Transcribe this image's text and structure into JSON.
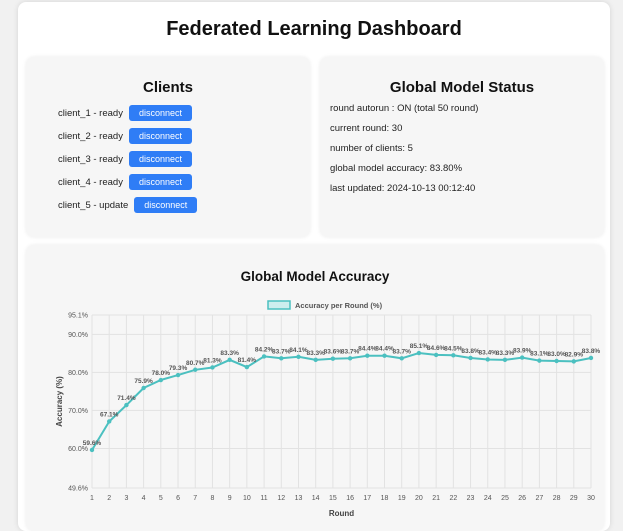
{
  "page": {
    "title": "Federated Learning Dashboard"
  },
  "clients": {
    "title": "Clients",
    "items": [
      {
        "label": "client_1 - ready",
        "button": "disconnect"
      },
      {
        "label": "client_2 - ready",
        "button": "disconnect"
      },
      {
        "label": "client_3 - ready",
        "button": "disconnect"
      },
      {
        "label": "client_4 - ready",
        "button": "disconnect"
      },
      {
        "label": "client_5 - update",
        "button": "disconnect"
      }
    ]
  },
  "status": {
    "title": "Global Model Status",
    "lines": [
      "round autorun : ON (total 50 round)",
      "current round: 30",
      "number of clients: 5",
      "global model accuracy: 83.80%",
      "last updated: 2024-10-13 00:12:40"
    ]
  },
  "chart": {
    "title": "Global Model Accuracy",
    "accent": "#4bc0c0"
  },
  "chart_data": {
    "type": "line",
    "title": "Global Model Accuracy",
    "xlabel": "Round",
    "ylabel": "Accuracy (%)",
    "legend": {
      "position": "top",
      "entries": [
        "Accuracy per Round (%)"
      ]
    },
    "ylim": [
      49.6,
      95.1
    ],
    "y_ticks": [
      49.6,
      60.0,
      70.0,
      80.0,
      90.0,
      95.1
    ],
    "y_tick_labels": [
      "49.6%",
      "60.0%",
      "70.0%",
      "80.0%",
      "90.0%",
      "95.1%"
    ],
    "grid": true,
    "series": [
      {
        "name": "Accuracy per Round (%)",
        "x": [
          1,
          2,
          3,
          4,
          5,
          6,
          7,
          8,
          9,
          10,
          11,
          12,
          13,
          14,
          15,
          16,
          17,
          18,
          19,
          20,
          21,
          22,
          23,
          24,
          25,
          26,
          27,
          28,
          29,
          30
        ],
        "values": [
          59.6,
          67.1,
          71.4,
          75.9,
          78.0,
          79.3,
          80.7,
          81.3,
          83.3,
          81.4,
          84.2,
          83.7,
          84.1,
          83.3,
          83.6,
          83.7,
          84.4,
          84.4,
          83.7,
          85.1,
          84.6,
          84.5,
          83.8,
          83.4,
          83.3,
          83.9,
          83.1,
          83.0,
          82.9,
          83.8
        ],
        "labels": [
          "59.6%",
          "67.1%",
          "71.4%",
          "75.9%",
          "78.0%",
          "79.3%",
          "80.7%",
          "81.3%",
          "83.3%",
          "81.4%",
          "84.2%",
          "83.7%",
          "84.1%",
          "83.3%",
          "83.6%",
          "83.7%",
          "84.4%",
          "84.4%",
          "83.7%",
          "85.1%",
          "84.6%",
          "84.5%",
          "83.8%",
          "83.4%",
          "83.3%",
          "83.9%",
          "83.1%",
          "83.0%",
          "82.9%",
          "83.8%"
        ]
      }
    ]
  }
}
